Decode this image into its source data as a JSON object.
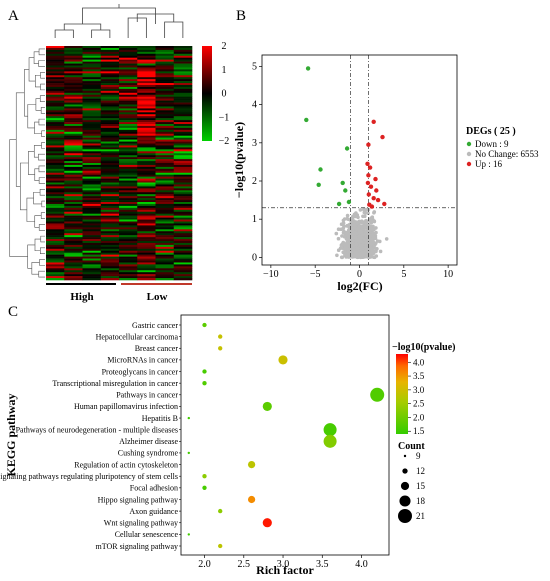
{
  "panel_labels": [
    "A",
    "B",
    "C"
  ],
  "chart_data": [
    {
      "type": "heatmap",
      "panel": "A",
      "groups": [
        {
          "label": "High",
          "color": "#000000",
          "columns": 4
        },
        {
          "label": "Low",
          "color": "#c0392b",
          "columns": 4
        }
      ],
      "n_columns": 8,
      "n_rows": 25,
      "colorbar": {
        "ticks": [
          -2,
          -1,
          0,
          1,
          2
        ],
        "low": "#00d000",
        "mid": "#000000",
        "high": "#ff0000"
      }
    },
    {
      "type": "scatter",
      "panel": "B",
      "xlabel": "log2(FC)",
      "ylabel": "−log10(pvalue)",
      "xlim": [
        -11,
        11
      ],
      "ylim": [
        -0.2,
        5.3
      ],
      "xticks": [
        -10,
        -5,
        0,
        5,
        10
      ],
      "yticks": [
        0,
        1,
        2,
        3,
        4,
        5
      ],
      "thresholds": {
        "x": [
          -1,
          1
        ],
        "y": 1.3
      },
      "legend": {
        "title": "DEGs ( 25 )",
        "entries": [
          {
            "label": "Down : 9",
            "color": "#33aa33"
          },
          {
            "label": "No Change: 6553",
            "color": "#bbbbbb"
          },
          {
            "label": "Up : 16",
            "color": "#dd2222"
          }
        ]
      },
      "series": [
        {
          "name": "Down : 9",
          "color": "#33aa33",
          "points": [
            [
              -5.8,
              4.95
            ],
            [
              -6.0,
              3.6
            ],
            [
              -1.4,
              2.85
            ],
            [
              -4.4,
              2.3
            ],
            [
              -4.6,
              1.9
            ],
            [
              -1.9,
              1.95
            ],
            [
              -1.6,
              1.75
            ],
            [
              -1.2,
              1.45
            ],
            [
              -2.3,
              1.4
            ]
          ]
        },
        {
          "name": "Up : 16",
          "color": "#dd2222",
          "points": [
            [
              1.6,
              3.55
            ],
            [
              2.6,
              3.15
            ],
            [
              1.0,
              2.95
            ],
            [
              0.9,
              2.45
            ],
            [
              1.2,
              2.35
            ],
            [
              1.0,
              2.15
            ],
            [
              1.8,
              2.05
            ],
            [
              0.95,
              1.95
            ],
            [
              1.3,
              1.85
            ],
            [
              1.9,
              1.75
            ],
            [
              1.05,
              1.65
            ],
            [
              1.6,
              1.55
            ],
            [
              2.1,
              1.5
            ],
            [
              2.8,
              1.4
            ],
            [
              1.1,
              1.38
            ],
            [
              1.4,
              1.33
            ]
          ]
        }
      ],
      "background_cloud": {
        "color": "#bbbbbb",
        "note_count": 6553
      }
    },
    {
      "type": "scatter",
      "panel": "C",
      "xlabel": "Rich factor",
      "ylabel": "KEGG pathway",
      "xlim": [
        1.7,
        4.35
      ],
      "xticks": [
        2.0,
        2.5,
        3.0,
        3.5,
        4.0
      ],
      "color_legend": {
        "title": "−log10(pvalue)",
        "ticks": [
          1.5,
          2.0,
          2.5,
          3.0,
          3.5,
          4.0
        ],
        "min": 1.4,
        "max": 4.3
      },
      "size_legend": {
        "title": "Count",
        "values": [
          9,
          12,
          15,
          18,
          21
        ]
      },
      "pathways": [
        {
          "name": "Gastric cancer",
          "rich": 2.0,
          "neglogp": 1.8,
          "count": 11
        },
        {
          "name": "Hepatocellular carcinoma",
          "rich": 2.2,
          "neglogp": 2.9,
          "count": 11
        },
        {
          "name": "Breast cancer",
          "rich": 2.2,
          "neglogp": 2.9,
          "count": 11
        },
        {
          "name": "MicroRNAs in cancer",
          "rich": 3.0,
          "neglogp": 2.95,
          "count": 16
        },
        {
          "name": "Proteoglycans in cancer",
          "rich": 2.0,
          "neglogp": 1.6,
          "count": 11
        },
        {
          "name": "Transcriptional misregulation in cancer",
          "rich": 2.0,
          "neglogp": 1.7,
          "count": 11
        },
        {
          "name": "Pathways in cancer",
          "rich": 4.2,
          "neglogp": 1.7,
          "count": 21
        },
        {
          "name": "Human papillomavirus infection",
          "rich": 2.8,
          "neglogp": 1.8,
          "count": 16
        },
        {
          "name": "Hepatitis B",
          "rich": 1.8,
          "neglogp": 1.55,
          "count": 9
        },
        {
          "name": "Pathways of neurodegeneration - multiple diseases",
          "rich": 3.6,
          "neglogp": 1.6,
          "count": 20
        },
        {
          "name": "Alzheimer disease",
          "rich": 3.6,
          "neglogp": 2.2,
          "count": 20
        },
        {
          "name": "Cushing syndrome",
          "rich": 1.8,
          "neglogp": 1.55,
          "count": 9
        },
        {
          "name": "Regulation of actin cytoskeleton",
          "rich": 2.6,
          "neglogp": 2.8,
          "count": 14
        },
        {
          "name": "Signaling pathways regulating pluripotency of stem cells",
          "rich": 2.0,
          "neglogp": 2.3,
          "count": 11
        },
        {
          "name": "Focal adhesion",
          "rich": 2.0,
          "neglogp": 1.6,
          "count": 11
        },
        {
          "name": "Hippo signaling pathway",
          "rich": 2.6,
          "neglogp": 3.6,
          "count": 14
        },
        {
          "name": "Axon guidance",
          "rich": 2.2,
          "neglogp": 2.3,
          "count": 11
        },
        {
          "name": "Wnt signaling pathway",
          "rich": 2.8,
          "neglogp": 4.2,
          "count": 16
        },
        {
          "name": "Cellular senescence",
          "rich": 1.8,
          "neglogp": 1.55,
          "count": 9
        },
        {
          "name": "mTOR signaling pathway",
          "rich": 2.2,
          "neglogp": 2.8,
          "count": 11
        }
      ]
    }
  ]
}
